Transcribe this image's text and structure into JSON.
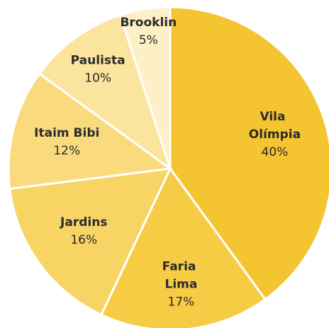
{
  "chart_data": {
    "type": "pie",
    "categories": [
      "Vila Olímpia",
      "Faria Lima",
      "Jardins",
      "Itaim Bibi",
      "Paulista",
      "Brooklin"
    ],
    "values": [
      40,
      17,
      16,
      12,
      10,
      5
    ],
    "value_labels": [
      "40%",
      "17%",
      "16%",
      "12%",
      "10%",
      "5%"
    ],
    "colors": [
      "#f5c431",
      "#f7cc45",
      "#f8d465",
      "#f9db7e",
      "#fbe49e",
      "#fdefc6"
    ]
  }
}
